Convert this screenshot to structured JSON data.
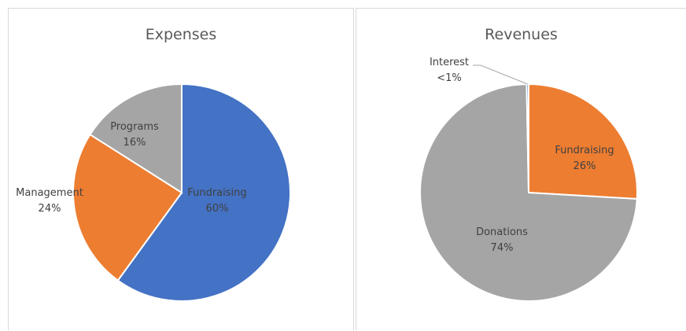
{
  "chart_data": [
    {
      "type": "pie",
      "title": "Expenses",
      "slices": [
        {
          "label": "Fundraising",
          "value": 60,
          "value_label": "60%",
          "color": "#4472c4"
        },
        {
          "label": "Management",
          "value": 24,
          "value_label": "24%",
          "color": "#ed7d31"
        },
        {
          "label": "Programs",
          "value": 16,
          "value_label": "16%",
          "color": "#a5a5a5"
        }
      ]
    },
    {
      "type": "pie",
      "title": "Revenues",
      "slices": [
        {
          "label": "Fundraising",
          "value": 26,
          "value_label": "26%",
          "color": "#ed7d31"
        },
        {
          "label": "Donations",
          "value": 74,
          "value_label": "74%",
          "color": "#a5a5a5"
        },
        {
          "label": "Interest",
          "value": 0.3,
          "value_label": "<1%",
          "color": "#4472c4"
        }
      ]
    }
  ]
}
